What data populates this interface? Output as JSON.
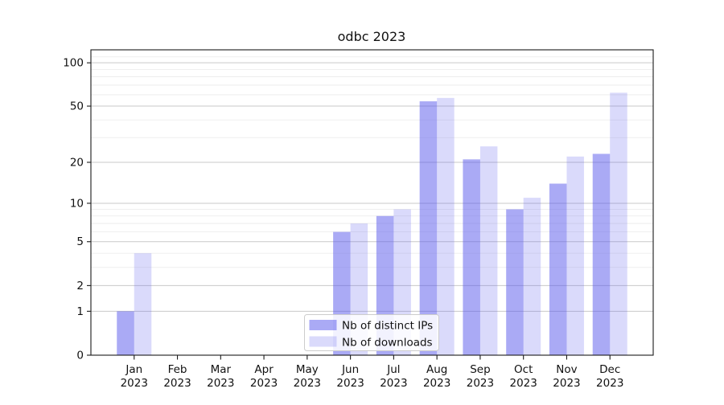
{
  "figure": {
    "title": "odbc 2023"
  },
  "chart_data": {
    "type": "bar",
    "title": "odbc 2023",
    "categories": [
      "Jan 2023",
      "Feb 2023",
      "Mar 2023",
      "Apr 2023",
      "May 2023",
      "Jun 2023",
      "Jul 2023",
      "Aug 2023",
      "Sep 2023",
      "Oct 2023",
      "Nov 2023",
      "Dec 2023"
    ],
    "series": [
      {
        "name": "Nb of distinct IPs",
        "color": "rgba(85,85,235,0.50)",
        "values": [
          1,
          0,
          0,
          0,
          0,
          6,
          8,
          54,
          21,
          9,
          14,
          23
        ]
      },
      {
        "name": "Nb of downloads",
        "color": "rgba(85,85,235,0.22)",
        "values": [
          4,
          0,
          0,
          0,
          0,
          7,
          9,
          57,
          26,
          11,
          22,
          62
        ]
      }
    ],
    "xlabel": "",
    "ylabel": "",
    "yscale": "log1p",
    "ylim": [
      0,
      123
    ],
    "yticks": [
      0,
      1,
      2,
      5,
      10,
      20,
      50,
      100
    ],
    "minor_gridlines": [
      3,
      4,
      6,
      7,
      8,
      9,
      30,
      40,
      60,
      70,
      80,
      90,
      110
    ],
    "grid": true,
    "legend_position": "inside lower center"
  },
  "colors": {
    "major_grid": "#c9c9c9",
    "minor_grid": "#eaeaea",
    "spine": "#1a1a1a",
    "text": "#111111",
    "legend_border": "#cccccc",
    "legend_bg": "rgba(255,255,255,0.85)"
  }
}
